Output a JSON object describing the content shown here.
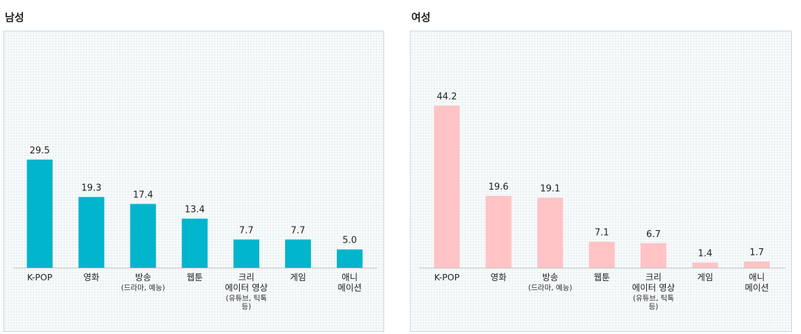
{
  "chart_data": [
    {
      "type": "bar",
      "title": "남성",
      "color": "#00b5cc",
      "categories": [
        {
          "lines": [
            "K-POP"
          ],
          "sub": []
        },
        {
          "lines": [
            "영화"
          ],
          "sub": []
        },
        {
          "lines": [
            "방송"
          ],
          "sub": [
            "(드라마, 예능)"
          ]
        },
        {
          "lines": [
            "웹툰"
          ],
          "sub": []
        },
        {
          "lines": [
            "크리",
            "에이터 영상"
          ],
          "sub": [
            "(유튜브, 틱톡",
            "등)"
          ]
        },
        {
          "lines": [
            "게임"
          ],
          "sub": []
        },
        {
          "lines": [
            "애니",
            "메이션"
          ],
          "sub": []
        }
      ],
      "values": [
        29.5,
        19.3,
        17.4,
        13.4,
        7.7,
        7.7,
        5.0
      ],
      "value_labels": [
        "29.5",
        "19.3",
        "17.4",
        "13.4",
        "7.7",
        "7.7",
        "5.0"
      ],
      "ylim": [
        0,
        50
      ]
    },
    {
      "type": "bar",
      "title": "여성",
      "color": "#ffc3c6",
      "categories": [
        {
          "lines": [
            "K-POP"
          ],
          "sub": []
        },
        {
          "lines": [
            "영화"
          ],
          "sub": []
        },
        {
          "lines": [
            "방송"
          ],
          "sub": [
            "(드라마, 예능)"
          ]
        },
        {
          "lines": [
            "웹툰"
          ],
          "sub": []
        },
        {
          "lines": [
            "크리",
            "에이터 영상"
          ],
          "sub": [
            "(유튜브, 틱톡",
            "등)"
          ]
        },
        {
          "lines": [
            "게임"
          ],
          "sub": []
        },
        {
          "lines": [
            "애니",
            "메이션"
          ],
          "sub": []
        }
      ],
      "values": [
        44.2,
        19.6,
        19.1,
        7.1,
        6.7,
        1.4,
        1.7
      ],
      "value_labels": [
        "44.2",
        "19.6",
        "19.1",
        "7.1",
        "6.7",
        "1.4",
        "1.7"
      ],
      "ylim": [
        0,
        50
      ]
    }
  ]
}
